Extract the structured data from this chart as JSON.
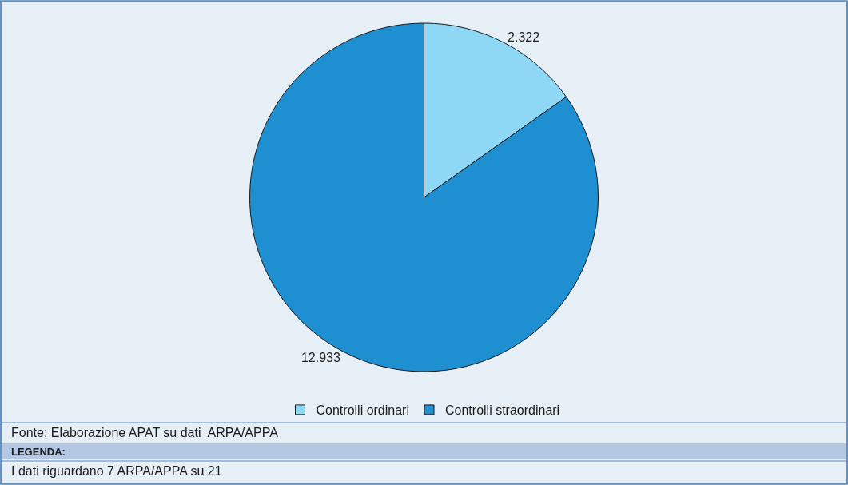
{
  "chart_data": {
    "type": "pie",
    "categories": [
      "Controlli ordinari",
      "Controlli straordinari"
    ],
    "values": [
      2322,
      12933
    ],
    "value_labels": [
      "2.322",
      "12.933"
    ],
    "colors": [
      "#8fd8f5",
      "#1e8fd0"
    ],
    "legend": "bottom",
    "annotations": [
      "Fonte: Elaborazione APAT su dati  ARPA/APPA",
      "LEGENDA:",
      "I dati riguardano 7 ARPA/APPA su 21"
    ]
  }
}
